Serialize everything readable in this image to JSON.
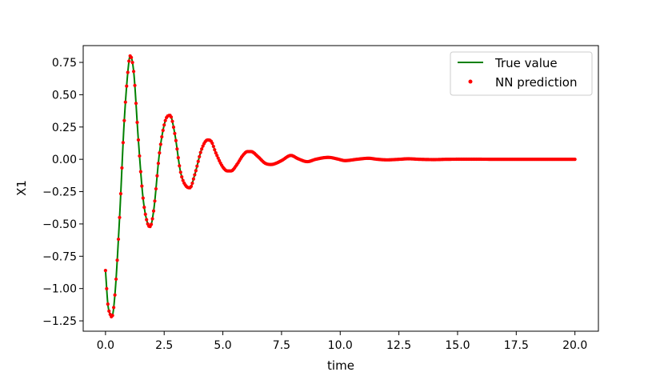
{
  "chart_data": {
    "type": "line",
    "xlabel": "time",
    "ylabel": "X1",
    "xlim": [
      -0.95,
      21.0
    ],
    "ylim": [
      -1.33,
      0.88
    ],
    "grid": false,
    "legend_position": "top-right",
    "x_ticks": [
      0.0,
      2.5,
      5.0,
      7.5,
      10.0,
      12.5,
      15.0,
      17.5,
      20.0
    ],
    "x_tick_labels": [
      "0.0",
      "2.5",
      "5.0",
      "7.5",
      "10.0",
      "12.5",
      "15.0",
      "17.5",
      "20.0"
    ],
    "y_ticks": [
      0.75,
      0.5,
      0.25,
      0.0,
      -0.25,
      -0.5,
      -0.75,
      -1.0,
      -1.25
    ],
    "y_tick_labels": [
      "0.75",
      "0.50",
      "0.25",
      "0.00",
      "−0.25",
      "−0.50",
      "−0.75",
      "−1.00",
      "−1.25"
    ],
    "series": [
      {
        "name": "True value",
        "kind": "line",
        "color": "#008000",
        "x": [
          0.0,
          0.1,
          0.2,
          0.27,
          0.4,
          0.6,
          0.8,
          1.0,
          1.05,
          1.2,
          1.4,
          1.6,
          1.8,
          1.9,
          2.05,
          2.3,
          2.55,
          2.75,
          2.95,
          3.2,
          3.45,
          3.6,
          3.8,
          4.1,
          4.35,
          4.5,
          4.7,
          5.0,
          5.2,
          5.35,
          5.6,
          5.85,
          6.05,
          6.2,
          6.5,
          6.8,
          7.05,
          7.2,
          7.5,
          7.9,
          8.2,
          8.6,
          8.95,
          9.5,
          9.9,
          10.2,
          10.7,
          11.2,
          11.6,
          12.0,
          12.5,
          12.9,
          13.4,
          14.0,
          14.5,
          15.5,
          17.0,
          18.5,
          20.0
        ],
        "y": [
          -0.86,
          -1.12,
          -1.2,
          -1.22,
          -1.05,
          -0.45,
          0.3,
          0.76,
          0.8,
          0.68,
          0.15,
          -0.3,
          -0.5,
          -0.52,
          -0.4,
          0.05,
          0.3,
          0.34,
          0.2,
          -0.1,
          -0.21,
          -0.22,
          -0.12,
          0.08,
          0.15,
          0.14,
          0.05,
          -0.06,
          -0.09,
          -0.09,
          -0.04,
          0.03,
          0.06,
          0.06,
          0.02,
          -0.03,
          -0.04,
          -0.035,
          -0.01,
          0.03,
          0.005,
          -0.018,
          0.0,
          0.015,
          0.002,
          -0.01,
          0.0,
          0.008,
          0.0,
          -0.004,
          0.0,
          0.004,
          0.0,
          -0.002,
          0.0,
          0.001,
          0.0,
          0.0,
          0.0
        ]
      },
      {
        "name": "NN prediction",
        "kind": "scatter",
        "color": "#ff0000"
      }
    ]
  },
  "legend": {
    "line_label": "True value",
    "scatter_label": "NN prediction"
  }
}
